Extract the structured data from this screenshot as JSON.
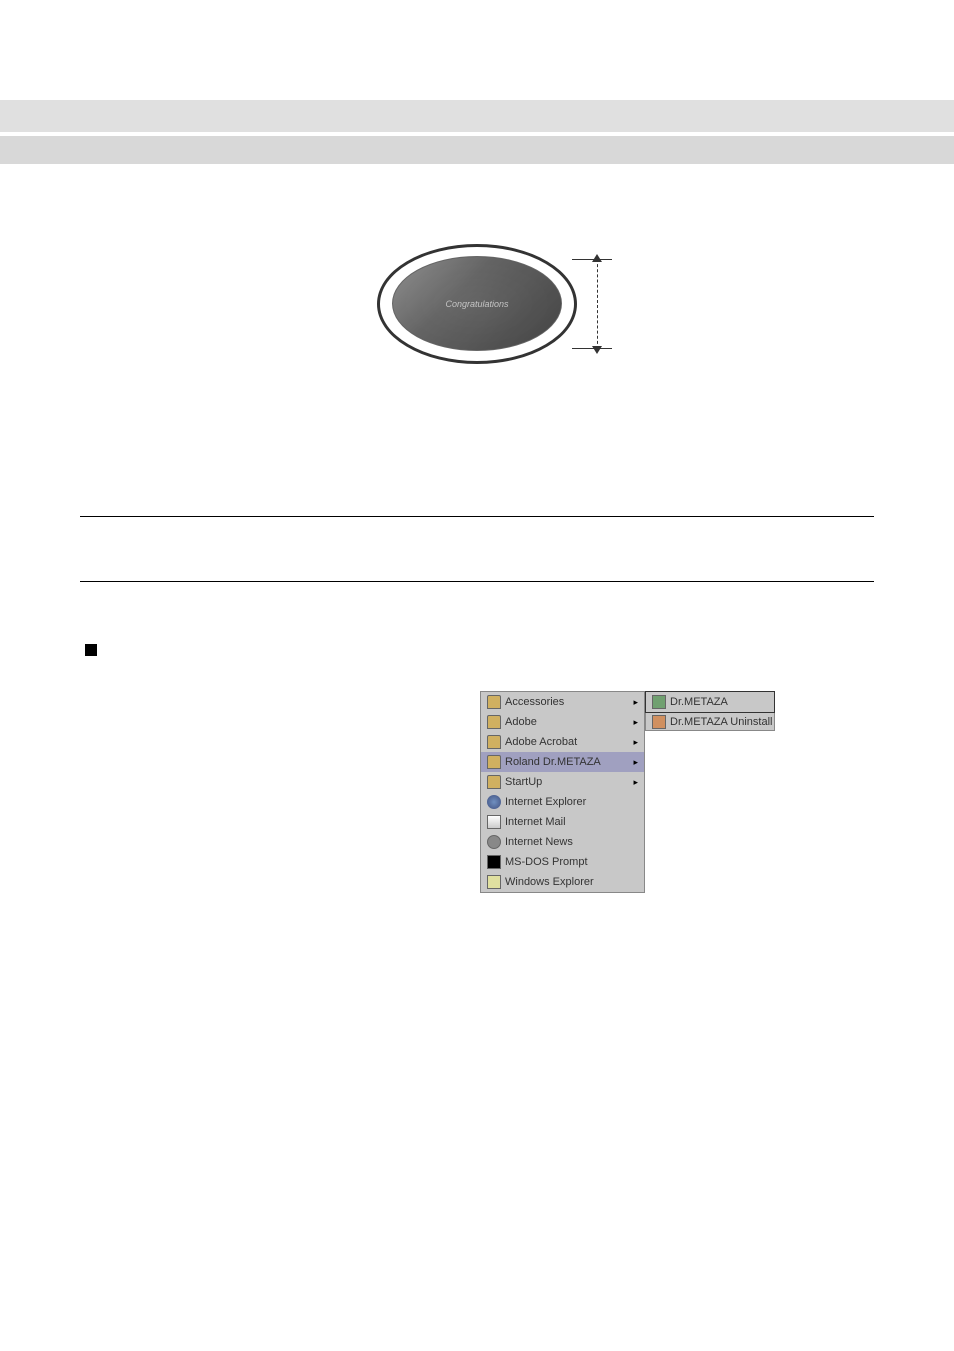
{
  "illustration": {
    "plate_text": "Congratulations"
  },
  "menu": {
    "col1": [
      {
        "label": "Accessories",
        "icon": "folder",
        "arrow": true
      },
      {
        "label": "Adobe",
        "icon": "folder",
        "arrow": true
      },
      {
        "label": "Adobe Acrobat",
        "icon": "folder",
        "arrow": true
      },
      {
        "label": "Roland Dr.METAZA",
        "icon": "folder",
        "arrow": true,
        "highlight": true
      },
      {
        "label": "StartUp",
        "icon": "folder",
        "arrow": true
      },
      {
        "label": "Internet Explorer",
        "icon": "globe",
        "arrow": false
      },
      {
        "label": "Internet Mail",
        "icon": "mail",
        "arrow": false
      },
      {
        "label": "Internet News",
        "icon": "news",
        "arrow": false
      },
      {
        "label": "MS-DOS Prompt",
        "icon": "dos",
        "arrow": false
      },
      {
        "label": "Windows Explorer",
        "icon": "explorer",
        "arrow": false
      }
    ],
    "col2": [
      {
        "label": "Dr.METAZA",
        "icon": "app",
        "bordered": true
      },
      {
        "label": "Dr.METAZA Uninstall",
        "icon": "uninstall",
        "bordered": false
      }
    ]
  },
  "colors": {
    "header_bar": "#e0e0e0",
    "header_bar2": "#d8d8d8",
    "menu_bg": "#c8c8c8",
    "menu_highlight": "#a0a0c0",
    "menu_border": "#888888",
    "black": "#000000"
  }
}
